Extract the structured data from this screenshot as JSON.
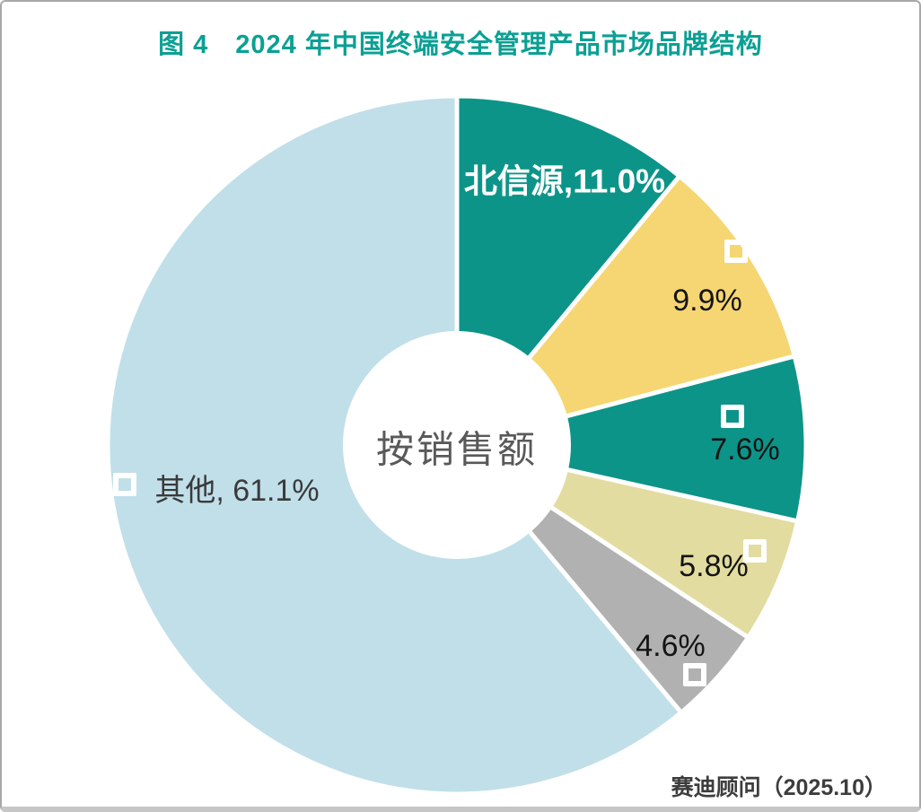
{
  "figure": {
    "title": "图 4　2024 年中国终端安全管理产品市场品牌结构",
    "source": "赛迪顾问（2025.10）"
  },
  "chart_data": {
    "type": "pie",
    "subtype": "donut",
    "title": "图 4　2024 年中国终端安全管理产品市场品牌结构",
    "center_label": "按销售额",
    "unit": "%",
    "start_angle_deg": 0,
    "direction": "clockwise",
    "slice_gap_color": "#ffffff",
    "slices": [
      {
        "name": "北信源",
        "value": 11.0,
        "label": "北信源,11.0%",
        "color": "#0d9489",
        "label_color": "#ffffff",
        "marker": false
      },
      {
        "value": 9.9,
        "label": "9.9%",
        "color": "#f6d672",
        "label_color": "#141414",
        "marker": true
      },
      {
        "value": 7.6,
        "label": "7.6%",
        "color": "#0d9489",
        "label_color": "#141414",
        "marker": true
      },
      {
        "value": 5.8,
        "label": "5.8%",
        "color": "#e2dca0",
        "label_color": "#141414",
        "marker": true
      },
      {
        "value": 4.6,
        "label": "4.6%",
        "color": "#b1b1b1",
        "label_color": "#141414",
        "marker": true
      },
      {
        "name": "其他",
        "value": 61.1,
        "label": "其他, 61.1%",
        "color": "#c0dfe9",
        "label_color": "#3a3a3a",
        "marker": true
      }
    ],
    "colors": {
      "title_accent": "#0ba094",
      "center_text": "#595959",
      "source_text": "#3d3d3d",
      "marker_stroke": "#ffffff"
    }
  }
}
